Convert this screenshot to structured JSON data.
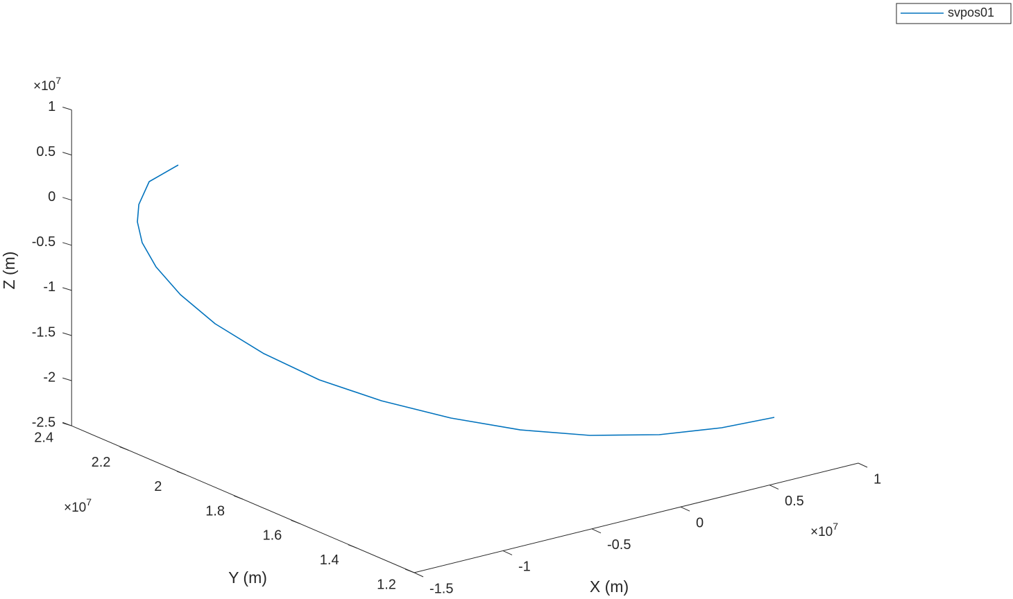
{
  "chart_data": {
    "type": "line3d",
    "legend_position": "northeast",
    "x_label": "X (m)",
    "y_label": "Y (m)",
    "z_label": "Z (m)",
    "x_exponent": {
      "base": "×10",
      "power": "7"
    },
    "y_exponent": {
      "base": "×10",
      "power": "7"
    },
    "z_exponent": {
      "base": "×10",
      "power": "7"
    },
    "xlim": [
      -1.5,
      1
    ],
    "xticks": [
      -1.5,
      -1,
      -0.5,
      0,
      0.5,
      1
    ],
    "ylim": [
      1.2,
      2.4
    ],
    "yticks": [
      1.2,
      1.4,
      1.6,
      1.8,
      2,
      2.2,
      2.4
    ],
    "zlim": [
      -2.5,
      1
    ],
    "zticks": [
      -2.5,
      -2,
      -1.5,
      -1,
      -0.5,
      0,
      0.5,
      1
    ],
    "series": [
      {
        "name": "svpos01",
        "color": "#0072BD",
        "x": [
          -1.382,
          -1.417,
          -1.411,
          -1.387,
          -1.36,
          -1.314,
          -1.241,
          -1.142,
          -0.997,
          -0.813,
          -0.591,
          -0.329,
          -0.067,
          0.196,
          0.458,
          0.681,
          0.849
        ],
        "y": [
          2.1,
          2.18,
          2.22,
          2.24,
          2.24,
          2.22,
          2.18,
          2.12,
          2.04,
          1.96,
          1.88,
          1.8,
          1.72,
          1.64,
          1.56,
          1.48,
          1.4
        ],
        "z": [
          0.739,
          0.463,
          0.153,
          -0.078,
          -0.322,
          -0.586,
          -0.874,
          -1.164,
          -1.456,
          -1.728,
          -1.959,
          -2.169,
          -2.319,
          -2.399,
          -2.41,
          -2.333,
          -2.191
        ]
      }
    ]
  }
}
